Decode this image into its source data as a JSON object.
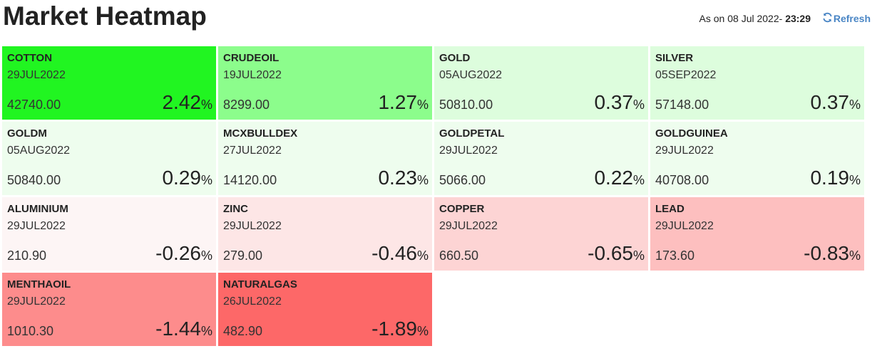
{
  "header": {
    "title": "Market Heatmap",
    "as_on_prefix": "As on 08 Jul 2022- ",
    "as_on_time": "23:29",
    "refresh_label": "Refresh",
    "refresh_icon": "refresh-icon"
  },
  "percent_sign": "%",
  "tiles": [
    {
      "name": "COTTON",
      "expiry": "29JUL2022",
      "price": "42740.00",
      "change": "2.42",
      "color": "#21f521"
    },
    {
      "name": "CRUDEOIL",
      "expiry": "19JUL2022",
      "price": "8299.00",
      "change": "1.27",
      "color": "#8cfd8c"
    },
    {
      "name": "GOLD",
      "expiry": "05AUG2022",
      "price": "50810.00",
      "change": "0.37",
      "color": "#ddfddd"
    },
    {
      "name": "SILVER",
      "expiry": "05SEP2022",
      "price": "57148.00",
      "change": "0.37",
      "color": "#ddfddd"
    },
    {
      "name": "GOLDM",
      "expiry": "05AUG2022",
      "price": "50840.00",
      "change": "0.29",
      "color": "#eefdee"
    },
    {
      "name": "MCXBULLDEX",
      "expiry": "27JUL2022",
      "price": "14120.00",
      "change": "0.23",
      "color": "#eefdee"
    },
    {
      "name": "GOLDPETAL",
      "expiry": "29JUL2022",
      "price": "5066.00",
      "change": "0.22",
      "color": "#eefdee"
    },
    {
      "name": "GOLDGUINEA",
      "expiry": "29JUL2022",
      "price": "40708.00",
      "change": "0.19",
      "color": "#eefdee"
    },
    {
      "name": "ALUMINIUM",
      "expiry": "29JUL2022",
      "price": "210.90",
      "change": "-0.26",
      "color": "#fdf5f5"
    },
    {
      "name": "ZINC",
      "expiry": "29JUL2022",
      "price": "279.00",
      "change": "-0.46",
      "color": "#fde6e6"
    },
    {
      "name": "COPPER",
      "expiry": "29JUL2022",
      "price": "660.50",
      "change": "-0.65",
      "color": "#fdd4d4"
    },
    {
      "name": "LEAD",
      "expiry": "29JUL2022",
      "price": "173.60",
      "change": "-0.83",
      "color": "#fdbfbf"
    },
    {
      "name": "MENTHAOIL",
      "expiry": "29JUL2022",
      "price": "1010.30",
      "change": "-1.44",
      "color": "#fd8c8c"
    },
    {
      "name": "NATURALGAS",
      "expiry": "26JUL2022",
      "price": "482.90",
      "change": "-1.89",
      "color": "#fd6868"
    }
  ]
}
